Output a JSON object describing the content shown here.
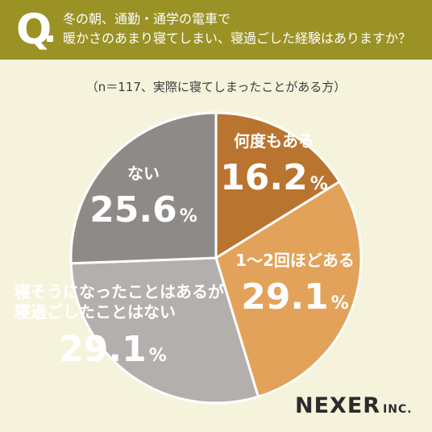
{
  "header": {
    "q_mark": "Q",
    "question_line1": "冬の朝、通勤・通学の電車で",
    "question_line2": "暖かさのあまり寝てしまい、寝過ごした経験はありますか？",
    "background_color": "#9B9226"
  },
  "sample_note": "（n＝117、実際に寝てしまったことがある方）",
  "chart_data": {
    "type": "pie",
    "title": "",
    "start_angle_deg": 0,
    "direction": "clockwise",
    "slices": [
      {
        "label_lines": [
          "何度もある"
        ],
        "value": 16.2,
        "value_text": "16.2",
        "unit": "%",
        "color": "#B9742F"
      },
      {
        "label_lines": [
          "1〜2回ほどある"
        ],
        "value": 29.1,
        "value_text": "29.1",
        "unit": "%",
        "color": "#E3A25A"
      },
      {
        "label_lines": [
          "寝そうになったことはあるが",
          "寝過ごしたことはない"
        ],
        "value": 29.1,
        "value_text": "29.1",
        "unit": "%",
        "color": "#B3AFAD"
      },
      {
        "label_lines": [
          "ない"
        ],
        "value": 25.6,
        "value_text": "25.6",
        "unit": "%",
        "color": "#8E8A88"
      }
    ]
  },
  "brand": {
    "name": "NEXER",
    "suffix": "INC."
  },
  "colors": {
    "background": "#F6F3DD",
    "label_text": "#ffffff",
    "brand_text": "#2B2B2B"
  }
}
